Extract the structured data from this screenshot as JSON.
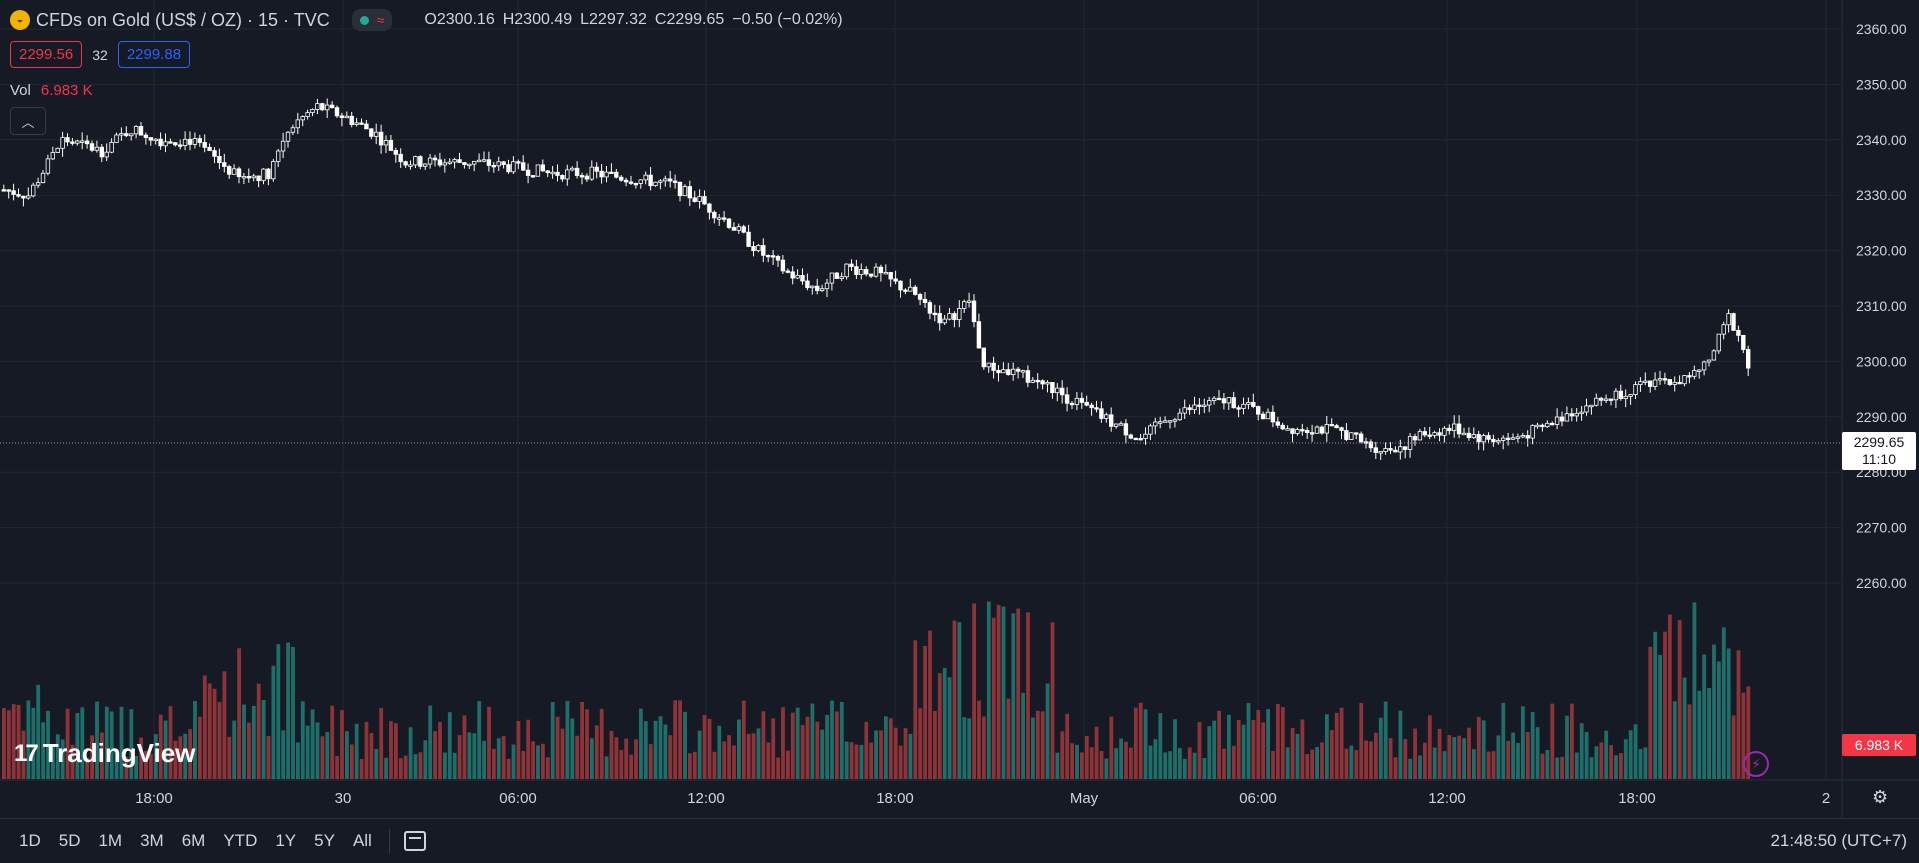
{
  "header": {
    "symbol_icon": "gold-coin-icon",
    "title": "CFDs on Gold (US$ / OZ) · 15 · TVC",
    "market_status_icon": "market-open-dot-icon",
    "wave_icon": "wave-icon",
    "ohlc": {
      "o_label": "O",
      "o": "2300.16",
      "h_label": "H",
      "h": "2300.49",
      "l_label": "L",
      "l": "2297.32",
      "c_label": "C",
      "c": "2299.65",
      "change": "−0.50 (−0.02%)"
    }
  },
  "trade": {
    "sell_price": "2299.56",
    "spread": "32",
    "buy_price": "2299.88"
  },
  "volume_legend": {
    "label": "Vol",
    "value": "6.983 K"
  },
  "collapse_icon": "chevron-up-icon",
  "price_scale": {
    "ticks": [
      "2360.00",
      "2350.00",
      "2340.00",
      "2330.00",
      "2320.00",
      "2310.00",
      "2300.00",
      "2290.00",
      "2280.00",
      "2270.00",
      "2260.00"
    ],
    "current_price": "2299.65",
    "countdown": "11:10",
    "volume_label": "6.983 K"
  },
  "time_axis": [
    "18:00",
    "30",
    "06:00",
    "12:00",
    "18:00",
    "May",
    "06:00",
    "12:00",
    "18:00",
    "2"
  ],
  "logo_text": "TradingView",
  "bottom": {
    "ranges": [
      "1D",
      "5D",
      "1M",
      "3M",
      "6M",
      "YTD",
      "1Y",
      "5Y",
      "All"
    ],
    "clock": "21:48:50 (UTC+7)"
  },
  "colors": {
    "up": "#ffffff",
    "down": "#ffffff",
    "vol_up": "#1e6f6a",
    "vol_down": "#8e3338",
    "bg": "#161a25",
    "grid": "#232733"
  },
  "chart_data": {
    "type": "candlestick",
    "anchors": [
      [
        0,
        2331
      ],
      [
        5,
        2330
      ],
      [
        12,
        2340
      ],
      [
        20,
        2338
      ],
      [
        26,
        2342
      ],
      [
        32,
        2340
      ],
      [
        38,
        2340
      ],
      [
        44,
        2336
      ],
      [
        48,
        2333
      ],
      [
        54,
        2334
      ],
      [
        58,
        2342
      ],
      [
        64,
        2346
      ],
      [
        70,
        2344
      ],
      [
        76,
        2341
      ],
      [
        82,
        2336
      ],
      [
        88,
        2336
      ],
      [
        96,
        2336
      ],
      [
        104,
        2335
      ],
      [
        112,
        2334
      ],
      [
        120,
        2334
      ],
      [
        128,
        2333
      ],
      [
        136,
        2332
      ],
      [
        142,
        2329
      ],
      [
        148,
        2325
      ],
      [
        154,
        2320
      ],
      [
        160,
        2316
      ],
      [
        166,
        2313
      ],
      [
        172,
        2317
      ],
      [
        178,
        2316
      ],
      [
        186,
        2312
      ],
      [
        192,
        2307
      ],
      [
        197,
        2311
      ],
      [
        200,
        2299
      ],
      [
        206,
        2298
      ],
      [
        212,
        2296
      ],
      [
        218,
        2293
      ],
      [
        224,
        2290
      ],
      [
        228,
        2288
      ],
      [
        232,
        2286
      ],
      [
        238,
        2290
      ],
      [
        244,
        2292
      ],
      [
        250,
        2293
      ],
      [
        256,
        2291
      ],
      [
        262,
        2288
      ],
      [
        268,
        2288
      ],
      [
        274,
        2287
      ],
      [
        278,
        2285
      ],
      [
        282,
        2284
      ],
      [
        286,
        2285
      ],
      [
        290,
        2287
      ],
      [
        296,
        2288
      ],
      [
        302,
        2286
      ],
      [
        308,
        2286
      ],
      [
        314,
        2288
      ],
      [
        320,
        2291
      ],
      [
        326,
        2293
      ],
      [
        332,
        2295
      ],
      [
        338,
        2296
      ],
      [
        344,
        2297
      ],
      [
        348,
        2300
      ],
      [
        352,
        2308
      ],
      [
        354,
        2305
      ],
      [
        356,
        2299
      ]
    ]
  }
}
